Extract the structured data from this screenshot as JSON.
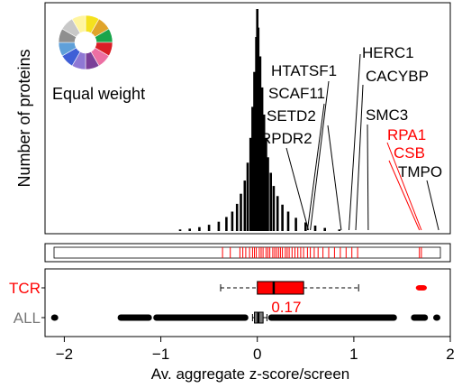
{
  "chart_data": [
    {
      "panel": "histogram",
      "type": "bar",
      "ylabel": "Number of proteins",
      "legend_label": "Equal weight",
      "wheel_colors": [
        "#f5e11e",
        "#e0a42a",
        "#19a54b",
        "#d91e26",
        "#ec6fa3",
        "#7b3f98",
        "#8f78d4",
        "#3f5fd6",
        "#5fa0d9",
        "#8f8f8f",
        "#c8c8c8",
        "#fff5a0"
      ],
      "xlim": [
        -2.2,
        2.0
      ],
      "bins": [
        {
          "x": -0.8,
          "count": 2
        },
        {
          "x": -0.7,
          "count": 3
        },
        {
          "x": -0.6,
          "count": 5
        },
        {
          "x": -0.5,
          "count": 8
        },
        {
          "x": -0.4,
          "count": 12
        },
        {
          "x": -0.32,
          "count": 18
        },
        {
          "x": -0.26,
          "count": 25
        },
        {
          "x": -0.21,
          "count": 35
        },
        {
          "x": -0.17,
          "count": 48
        },
        {
          "x": -0.13,
          "count": 65
        },
        {
          "x": -0.1,
          "count": 88
        },
        {
          "x": -0.07,
          "count": 120
        },
        {
          "x": -0.05,
          "count": 160
        },
        {
          "x": -0.03,
          "count": 205
        },
        {
          "x": -0.01,
          "count": 250
        },
        {
          "x": 0.0,
          "count": 286
        },
        {
          "x": 0.01,
          "count": 262
        },
        {
          "x": 0.03,
          "count": 225
        },
        {
          "x": 0.05,
          "count": 185
        },
        {
          "x": 0.07,
          "count": 150
        },
        {
          "x": 0.09,
          "count": 120
        },
        {
          "x": 0.11,
          "count": 95
        },
        {
          "x": 0.14,
          "count": 75
        },
        {
          "x": 0.17,
          "count": 58
        },
        {
          "x": 0.21,
          "count": 45
        },
        {
          "x": 0.26,
          "count": 34
        },
        {
          "x": 0.32,
          "count": 25
        },
        {
          "x": 0.4,
          "count": 17
        },
        {
          "x": 0.5,
          "count": 11
        },
        {
          "x": 0.6,
          "count": 7
        },
        {
          "x": 0.7,
          "count": 4
        },
        {
          "x": 0.85,
          "count": 2
        }
      ],
      "annotations": [
        {
          "label": "HTATSF1",
          "value": 0.55,
          "color": "#000000"
        },
        {
          "label": "SCAF11",
          "value": 0.52,
          "color": "#000000"
        },
        {
          "label": "SETD2",
          "value": 0.87,
          "color": "#000000"
        },
        {
          "label": "RPDR2",
          "value": 0.53,
          "color": "#000000"
        },
        {
          "label": "HERC1",
          "value": 0.95,
          "color": "#000000"
        },
        {
          "label": "CACYBP",
          "value": 1.02,
          "color": "#000000"
        },
        {
          "label": "SMC3",
          "value": 1.15,
          "color": "#000000"
        },
        {
          "label": "RPA1",
          "value": 1.7,
          "color": "#ff0000"
        },
        {
          "label": "CSB",
          "value": 1.68,
          "color": "#ff0000"
        },
        {
          "label": "TMPO",
          "value": 1.88,
          "color": "#000000"
        }
      ]
    },
    {
      "panel": "rug",
      "type": "scatter",
      "series": "TCR",
      "color": "#ff0000",
      "x": [
        -0.36,
        -0.28,
        -0.18,
        -0.15,
        -0.12,
        -0.08,
        -0.05,
        -0.03,
        -0.01,
        0.02,
        0.04,
        0.06,
        0.09,
        0.11,
        0.13,
        0.16,
        0.18,
        0.2,
        0.22,
        0.24,
        0.26,
        0.29,
        0.31,
        0.33,
        0.36,
        0.39,
        0.42,
        0.45,
        0.48,
        0.52,
        0.55,
        0.59,
        0.63,
        0.68,
        0.74,
        0.8,
        0.86,
        0.92,
        0.98,
        1.04,
        1.68,
        1.7
      ]
    },
    {
      "panel": "boxplot",
      "type": "box",
      "xlabel": "Av. aggregate z-score/screen",
      "xlim": [
        -2.2,
        2.0
      ],
      "xticks": [
        -2,
        -1,
        0,
        1,
        2
      ],
      "series": [
        {
          "name": "TCR",
          "color": "#ff0000",
          "whisker_low": -0.38,
          "q1": 0.0,
          "median": 0.17,
          "q3": 0.48,
          "whisker_high": 1.05,
          "median_label": "0.17",
          "outliers": [
            1.68,
            1.7,
            1.72
          ]
        },
        {
          "name": "ALL",
          "color": "#777777",
          "whisker_low": -0.05,
          "q1": -0.03,
          "median": 0.01,
          "q3": 0.06,
          "whisker_high": 0.1,
          "outlier_ranges": [
            [
              -2.1,
              -2.1
            ],
            [
              -1.42,
              -1.12
            ],
            [
              -1.05,
              -0.12
            ],
            [
              0.14,
              1.42
            ],
            [
              1.62,
              1.74
            ],
            [
              1.86,
              1.86
            ]
          ]
        }
      ]
    }
  ]
}
